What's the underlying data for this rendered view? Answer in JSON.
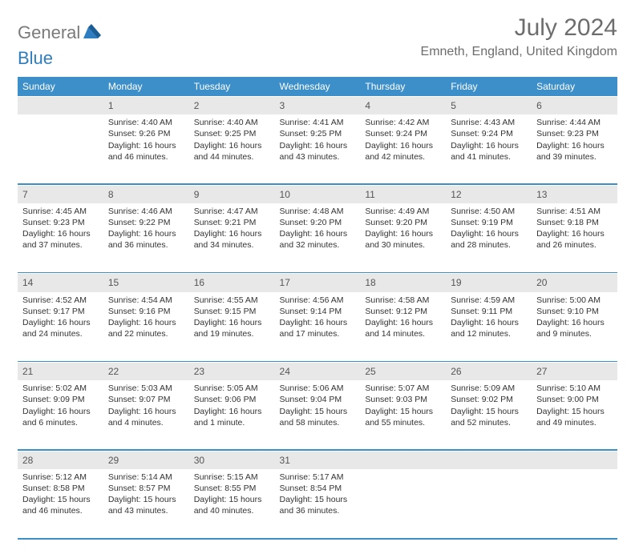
{
  "brand": {
    "word1": "General",
    "word2": "Blue"
  },
  "title": "July 2024",
  "location": "Emneth, England, United Kingdom",
  "colors": {
    "header_bg": "#3d8fc9",
    "header_text": "#ffffff",
    "daynum_bg": "#e8e8e8",
    "text": "#333333",
    "title": "#6d6d6d",
    "brand_gray": "#7a7a7a",
    "brand_blue": "#2d7dc0"
  },
  "weekdays": [
    "Sunday",
    "Monday",
    "Tuesday",
    "Wednesday",
    "Thursday",
    "Friday",
    "Saturday"
  ],
  "weeks": [
    {
      "nums": [
        "",
        "1",
        "2",
        "3",
        "4",
        "5",
        "6"
      ],
      "cells": [
        {
          "sunrise": "",
          "sunset": "",
          "dayl1": "",
          "dayl2": ""
        },
        {
          "sunrise": "Sunrise: 4:40 AM",
          "sunset": "Sunset: 9:26 PM",
          "dayl1": "Daylight: 16 hours",
          "dayl2": "and 46 minutes."
        },
        {
          "sunrise": "Sunrise: 4:40 AM",
          "sunset": "Sunset: 9:25 PM",
          "dayl1": "Daylight: 16 hours",
          "dayl2": "and 44 minutes."
        },
        {
          "sunrise": "Sunrise: 4:41 AM",
          "sunset": "Sunset: 9:25 PM",
          "dayl1": "Daylight: 16 hours",
          "dayl2": "and 43 minutes."
        },
        {
          "sunrise": "Sunrise: 4:42 AM",
          "sunset": "Sunset: 9:24 PM",
          "dayl1": "Daylight: 16 hours",
          "dayl2": "and 42 minutes."
        },
        {
          "sunrise": "Sunrise: 4:43 AM",
          "sunset": "Sunset: 9:24 PM",
          "dayl1": "Daylight: 16 hours",
          "dayl2": "and 41 minutes."
        },
        {
          "sunrise": "Sunrise: 4:44 AM",
          "sunset": "Sunset: 9:23 PM",
          "dayl1": "Daylight: 16 hours",
          "dayl2": "and 39 minutes."
        }
      ]
    },
    {
      "nums": [
        "7",
        "8",
        "9",
        "10",
        "11",
        "12",
        "13"
      ],
      "cells": [
        {
          "sunrise": "Sunrise: 4:45 AM",
          "sunset": "Sunset: 9:23 PM",
          "dayl1": "Daylight: 16 hours",
          "dayl2": "and 37 minutes."
        },
        {
          "sunrise": "Sunrise: 4:46 AM",
          "sunset": "Sunset: 9:22 PM",
          "dayl1": "Daylight: 16 hours",
          "dayl2": "and 36 minutes."
        },
        {
          "sunrise": "Sunrise: 4:47 AM",
          "sunset": "Sunset: 9:21 PM",
          "dayl1": "Daylight: 16 hours",
          "dayl2": "and 34 minutes."
        },
        {
          "sunrise": "Sunrise: 4:48 AM",
          "sunset": "Sunset: 9:20 PM",
          "dayl1": "Daylight: 16 hours",
          "dayl2": "and 32 minutes."
        },
        {
          "sunrise": "Sunrise: 4:49 AM",
          "sunset": "Sunset: 9:20 PM",
          "dayl1": "Daylight: 16 hours",
          "dayl2": "and 30 minutes."
        },
        {
          "sunrise": "Sunrise: 4:50 AM",
          "sunset": "Sunset: 9:19 PM",
          "dayl1": "Daylight: 16 hours",
          "dayl2": "and 28 minutes."
        },
        {
          "sunrise": "Sunrise: 4:51 AM",
          "sunset": "Sunset: 9:18 PM",
          "dayl1": "Daylight: 16 hours",
          "dayl2": "and 26 minutes."
        }
      ]
    },
    {
      "nums": [
        "14",
        "15",
        "16",
        "17",
        "18",
        "19",
        "20"
      ],
      "cells": [
        {
          "sunrise": "Sunrise: 4:52 AM",
          "sunset": "Sunset: 9:17 PM",
          "dayl1": "Daylight: 16 hours",
          "dayl2": "and 24 minutes."
        },
        {
          "sunrise": "Sunrise: 4:54 AM",
          "sunset": "Sunset: 9:16 PM",
          "dayl1": "Daylight: 16 hours",
          "dayl2": "and 22 minutes."
        },
        {
          "sunrise": "Sunrise: 4:55 AM",
          "sunset": "Sunset: 9:15 PM",
          "dayl1": "Daylight: 16 hours",
          "dayl2": "and 19 minutes."
        },
        {
          "sunrise": "Sunrise: 4:56 AM",
          "sunset": "Sunset: 9:14 PM",
          "dayl1": "Daylight: 16 hours",
          "dayl2": "and 17 minutes."
        },
        {
          "sunrise": "Sunrise: 4:58 AM",
          "sunset": "Sunset: 9:12 PM",
          "dayl1": "Daylight: 16 hours",
          "dayl2": "and 14 minutes."
        },
        {
          "sunrise": "Sunrise: 4:59 AM",
          "sunset": "Sunset: 9:11 PM",
          "dayl1": "Daylight: 16 hours",
          "dayl2": "and 12 minutes."
        },
        {
          "sunrise": "Sunrise: 5:00 AM",
          "sunset": "Sunset: 9:10 PM",
          "dayl1": "Daylight: 16 hours",
          "dayl2": "and 9 minutes."
        }
      ]
    },
    {
      "nums": [
        "21",
        "22",
        "23",
        "24",
        "25",
        "26",
        "27"
      ],
      "cells": [
        {
          "sunrise": "Sunrise: 5:02 AM",
          "sunset": "Sunset: 9:09 PM",
          "dayl1": "Daylight: 16 hours",
          "dayl2": "and 6 minutes."
        },
        {
          "sunrise": "Sunrise: 5:03 AM",
          "sunset": "Sunset: 9:07 PM",
          "dayl1": "Daylight: 16 hours",
          "dayl2": "and 4 minutes."
        },
        {
          "sunrise": "Sunrise: 5:05 AM",
          "sunset": "Sunset: 9:06 PM",
          "dayl1": "Daylight: 16 hours",
          "dayl2": "and 1 minute."
        },
        {
          "sunrise": "Sunrise: 5:06 AM",
          "sunset": "Sunset: 9:04 PM",
          "dayl1": "Daylight: 15 hours",
          "dayl2": "and 58 minutes."
        },
        {
          "sunrise": "Sunrise: 5:07 AM",
          "sunset": "Sunset: 9:03 PM",
          "dayl1": "Daylight: 15 hours",
          "dayl2": "and 55 minutes."
        },
        {
          "sunrise": "Sunrise: 5:09 AM",
          "sunset": "Sunset: 9:02 PM",
          "dayl1": "Daylight: 15 hours",
          "dayl2": "and 52 minutes."
        },
        {
          "sunrise": "Sunrise: 5:10 AM",
          "sunset": "Sunset: 9:00 PM",
          "dayl1": "Daylight: 15 hours",
          "dayl2": "and 49 minutes."
        }
      ]
    },
    {
      "nums": [
        "28",
        "29",
        "30",
        "31",
        "",
        "",
        ""
      ],
      "cells": [
        {
          "sunrise": "Sunrise: 5:12 AM",
          "sunset": "Sunset: 8:58 PM",
          "dayl1": "Daylight: 15 hours",
          "dayl2": "and 46 minutes."
        },
        {
          "sunrise": "Sunrise: 5:14 AM",
          "sunset": "Sunset: 8:57 PM",
          "dayl1": "Daylight: 15 hours",
          "dayl2": "and 43 minutes."
        },
        {
          "sunrise": "Sunrise: 5:15 AM",
          "sunset": "Sunset: 8:55 PM",
          "dayl1": "Daylight: 15 hours",
          "dayl2": "and 40 minutes."
        },
        {
          "sunrise": "Sunrise: 5:17 AM",
          "sunset": "Sunset: 8:54 PM",
          "dayl1": "Daylight: 15 hours",
          "dayl2": "and 36 minutes."
        },
        {
          "sunrise": "",
          "sunset": "",
          "dayl1": "",
          "dayl2": ""
        },
        {
          "sunrise": "",
          "sunset": "",
          "dayl1": "",
          "dayl2": ""
        },
        {
          "sunrise": "",
          "sunset": "",
          "dayl1": "",
          "dayl2": ""
        }
      ]
    }
  ]
}
